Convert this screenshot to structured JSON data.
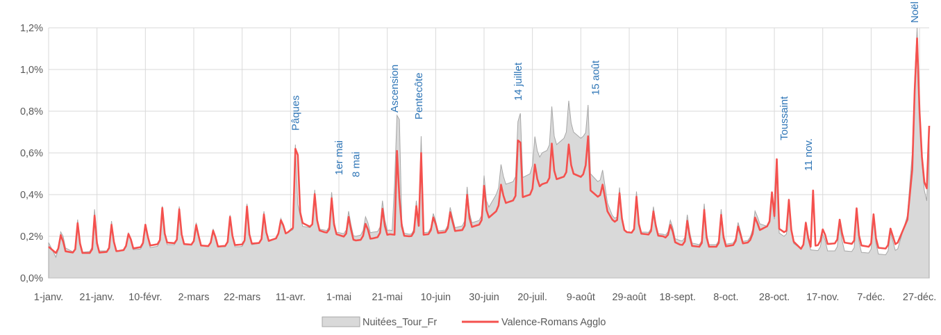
{
  "chart_data": {
    "type": "area",
    "title": "",
    "xlabel": "",
    "ylabel": "",
    "ylim": [
      0,
      0.012
    ],
    "yticks": [
      "0,0%",
      "0,2%",
      "0,4%",
      "0,6%",
      "0,8%",
      "1,0%",
      "1,2%"
    ],
    "x_tick_labels": [
      "1-janv.",
      "21-janv.",
      "10-févr.",
      "2-mars",
      "22-mars",
      "11-avr.",
      "1-mai",
      "21-mai",
      "10-juin",
      "30-juin",
      "20-juil.",
      "9-août",
      "29-août",
      "18-sept.",
      "8-oct.",
      "28-oct.",
      "17-nov.",
      "7-déc.",
      "27-déc."
    ],
    "x_range_days": [
      1,
      365
    ],
    "grid": "vertical-and-horizontal",
    "legend_position": "bottom",
    "colors": {
      "area": "#d9d9d9",
      "area_edge": "#a6a6a6",
      "line": "#f4514e",
      "annotation": "#2e75b6"
    },
    "series": [
      {
        "name": "Nuitées_Tour_Fr",
        "kind": "area",
        "keypoints": [
          [
            1,
            0.0017
          ],
          [
            4,
            0.001
          ],
          [
            7,
            0.0015
          ],
          [
            12,
            0.0012
          ],
          [
            20,
            0.0013
          ],
          [
            30,
            0.0013
          ],
          [
            40,
            0.0014
          ],
          [
            50,
            0.0016
          ],
          [
            60,
            0.0016
          ],
          [
            70,
            0.0015
          ],
          [
            80,
            0.0015
          ],
          [
            90,
            0.0017
          ],
          [
            95,
            0.0019
          ],
          [
            100,
            0.0022
          ],
          [
            105,
            0.0025
          ],
          [
            110,
            0.0024
          ],
          [
            115,
            0.0023
          ],
          [
            120,
            0.0022
          ],
          [
            128,
            0.002
          ],
          [
            135,
            0.0022
          ],
          [
            142,
            0.0023
          ],
          [
            150,
            0.0021
          ],
          [
            158,
            0.0022
          ],
          [
            165,
            0.0023
          ],
          [
            172,
            0.0025
          ],
          [
            180,
            0.0028
          ],
          [
            186,
            0.004
          ],
          [
            190,
            0.0045
          ],
          [
            195,
            0.0047
          ],
          [
            200,
            0.005
          ],
          [
            205,
            0.006
          ],
          [
            210,
            0.0063
          ],
          [
            215,
            0.0068
          ],
          [
            218,
            0.007
          ],
          [
            222,
            0.0066
          ],
          [
            225,
            0.005
          ],
          [
            229,
            0.0045
          ],
          [
            234,
            0.003
          ],
          [
            240,
            0.0022
          ],
          [
            248,
            0.0022
          ],
          [
            255,
            0.0021
          ],
          [
            262,
            0.0018
          ],
          [
            270,
            0.0016
          ],
          [
            280,
            0.0016
          ],
          [
            290,
            0.0018
          ],
          [
            295,
            0.0026
          ],
          [
            300,
            0.0024
          ],
          [
            305,
            0.002
          ],
          [
            312,
            0.0014
          ],
          [
            320,
            0.0013
          ],
          [
            330,
            0.0013
          ],
          [
            340,
            0.0012
          ],
          [
            348,
            0.0011
          ],
          [
            352,
            0.0014
          ],
          [
            356,
            0.003
          ],
          [
            358,
            0.006
          ],
          [
            359,
            0.0095
          ],
          [
            360,
            0.012
          ],
          [
            361,
            0.0085
          ],
          [
            362,
            0.0055
          ],
          [
            363,
            0.0042
          ],
          [
            364,
            0.0037
          ],
          [
            365,
            0.007
          ]
        ],
        "weekly_spikes": 0.002,
        "events": [
          [
            103,
            0.0064
          ],
          [
            144,
            0.0045
          ],
          [
            145,
            0.0078
          ],
          [
            146,
            0.0076
          ],
          [
            155,
            0.0068
          ],
          [
            195,
            0.0075
          ],
          [
            196,
            0.0079
          ],
          [
            224,
            0.0083
          ],
          [
            302,
            0.0056
          ]
        ]
      },
      {
        "name": "Valence-Romans Agglo",
        "kind": "line",
        "keypoints": [
          [
            1,
            0.0015
          ],
          [
            4,
            0.0012
          ],
          [
            7,
            0.0013
          ],
          [
            12,
            0.0012
          ],
          [
            20,
            0.0012
          ],
          [
            30,
            0.0013
          ],
          [
            40,
            0.0015
          ],
          [
            50,
            0.0017
          ],
          [
            60,
            0.0016
          ],
          [
            70,
            0.0015
          ],
          [
            80,
            0.0016
          ],
          [
            90,
            0.0017
          ],
          [
            95,
            0.0019
          ],
          [
            100,
            0.0022
          ],
          [
            105,
            0.0027
          ],
          [
            110,
            0.0024
          ],
          [
            115,
            0.0022
          ],
          [
            120,
            0.0021
          ],
          [
            128,
            0.0018
          ],
          [
            135,
            0.0019
          ],
          [
            142,
            0.0021
          ],
          [
            150,
            0.002
          ],
          [
            158,
            0.0021
          ],
          [
            165,
            0.0022
          ],
          [
            172,
            0.0023
          ],
          [
            180,
            0.0026
          ],
          [
            186,
            0.0032
          ],
          [
            190,
            0.0036
          ],
          [
            195,
            0.0038
          ],
          [
            200,
            0.004
          ],
          [
            205,
            0.0045
          ],
          [
            210,
            0.0047
          ],
          [
            215,
            0.0049
          ],
          [
            218,
            0.005
          ],
          [
            222,
            0.0048
          ],
          [
            225,
            0.0042
          ],
          [
            229,
            0.0038
          ],
          [
            234,
            0.0028
          ],
          [
            240,
            0.0022
          ],
          [
            248,
            0.0021
          ],
          [
            255,
            0.002
          ],
          [
            262,
            0.0016
          ],
          [
            270,
            0.0015
          ],
          [
            280,
            0.0015
          ],
          [
            290,
            0.0017
          ],
          [
            295,
            0.0023
          ],
          [
            300,
            0.0026
          ],
          [
            305,
            0.0022
          ],
          [
            312,
            0.0014
          ],
          [
            320,
            0.0016
          ],
          [
            330,
            0.0017
          ],
          [
            340,
            0.0015
          ],
          [
            348,
            0.0014
          ],
          [
            352,
            0.0017
          ],
          [
            356,
            0.0028
          ],
          [
            358,
            0.0052
          ],
          [
            359,
            0.009
          ],
          [
            360,
            0.0115
          ],
          [
            361,
            0.008
          ],
          [
            362,
            0.0058
          ],
          [
            363,
            0.0046
          ],
          [
            364,
            0.0043
          ],
          [
            365,
            0.0073
          ]
        ],
        "weekly_spikes": 0.0018,
        "events": [
          [
            103,
            0.0062
          ],
          [
            104,
            0.0059
          ],
          [
            145,
            0.0061
          ],
          [
            155,
            0.006
          ],
          [
            195,
            0.0066
          ],
          [
            196,
            0.0065
          ],
          [
            224,
            0.0068
          ],
          [
            302,
            0.0057
          ],
          [
            317,
            0.0042
          ]
        ]
      }
    ],
    "annotations": [
      {
        "text": "Pâques",
        "day": 103
      },
      {
        "text": "1er mai",
        "day": 121
      },
      {
        "text": "8 mai",
        "day": 128
      },
      {
        "text": "Ascension",
        "day": 144
      },
      {
        "text": "Pentecôte",
        "day": 154
      },
      {
        "text": "14 juillet",
        "day": 195
      },
      {
        "text": "15 août",
        "day": 227
      },
      {
        "text": "Toussaint",
        "day": 305
      },
      {
        "text": "11 nov.",
        "day": 315
      },
      {
        "text": "Noël",
        "day": 359
      }
    ]
  }
}
